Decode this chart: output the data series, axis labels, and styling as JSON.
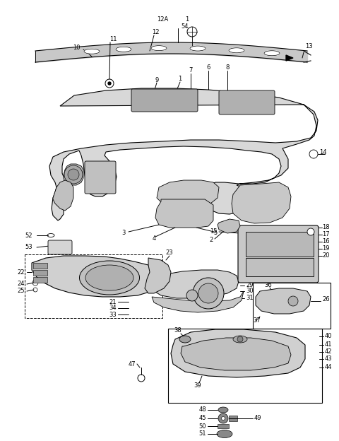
{
  "bg_color": "#ffffff",
  "line_color": "#000000",
  "fig_width": 4.8,
  "fig_height": 6.24,
  "dpi": 100,
  "gray_fill": "#d8d8d8",
  "dark_gray": "#888888",
  "mid_gray": "#bbbbbb"
}
